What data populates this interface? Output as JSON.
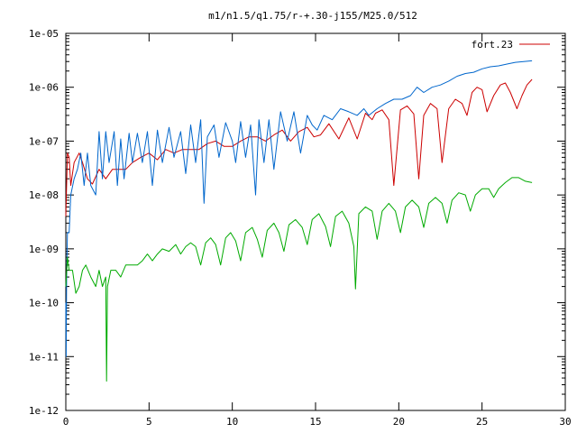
{
  "chart_data": {
    "type": "line",
    "title": "m1/n1.5/q1.75/r-+.30-j155/M25.0/512",
    "xlabel": "",
    "ylabel": "",
    "xlim": [
      0,
      30
    ],
    "ylim": [
      1e-12,
      1e-05
    ],
    "yscale": "log",
    "grid": false,
    "legend_position": "top-right",
    "x_ticks": [
      0,
      5,
      10,
      15,
      20,
      25,
      30
    ],
    "x_tick_labels": [
      "0",
      "5",
      "10",
      "15",
      "20",
      "25",
      "30"
    ],
    "y_ticks": [
      1e-12,
      1e-11,
      1e-10,
      1e-09,
      1e-08,
      1e-07,
      1e-06,
      1e-05
    ],
    "y_tick_labels": [
      "1e-12",
      "1e-11",
      "1e-10",
      "1e-09",
      "1e-08",
      "1e-07",
      "1e-06",
      "1e-05"
    ],
    "series": [
      {
        "name": "fort.23",
        "color": "#cc0000",
        "points": [
          [
            0.0,
            4e-09
          ],
          [
            0.1,
            6e-08
          ],
          [
            0.2,
            5e-08
          ],
          [
            0.3,
            1.5e-08
          ],
          [
            0.5,
            4e-08
          ],
          [
            0.8,
            6e-08
          ],
          [
            1.0,
            4e-08
          ],
          [
            1.3,
            2e-08
          ],
          [
            1.6,
            1.6e-08
          ],
          [
            2.0,
            3e-08
          ],
          [
            2.4,
            2e-08
          ],
          [
            2.8,
            3e-08
          ],
          [
            3.2,
            3e-08
          ],
          [
            3.6,
            3e-08
          ],
          [
            4.0,
            4e-08
          ],
          [
            4.5,
            5e-08
          ],
          [
            5.0,
            6e-08
          ],
          [
            5.5,
            4.5e-08
          ],
          [
            6.0,
            7e-08
          ],
          [
            6.5,
            6e-08
          ],
          [
            7.0,
            7e-08
          ],
          [
            7.5,
            7e-08
          ],
          [
            8.0,
            7e-08
          ],
          [
            8.5,
            9e-08
          ],
          [
            9.0,
            1e-07
          ],
          [
            9.5,
            8e-08
          ],
          [
            10.0,
            8e-08
          ],
          [
            10.5,
            1e-07
          ],
          [
            11.0,
            1.2e-07
          ],
          [
            11.5,
            1.2e-07
          ],
          [
            12.0,
            1e-07
          ],
          [
            12.5,
            1.3e-07
          ],
          [
            13.0,
            1.6e-07
          ],
          [
            13.5,
            1e-07
          ],
          [
            14.0,
            1.5e-07
          ],
          [
            14.5,
            1.8e-07
          ],
          [
            14.9,
            1.2e-07
          ],
          [
            15.3,
            1.3e-07
          ],
          [
            15.8,
            2.1e-07
          ],
          [
            16.4,
            1.1e-07
          ],
          [
            17.0,
            2.7e-07
          ],
          [
            17.5,
            1.1e-07
          ],
          [
            18.0,
            3.3e-07
          ],
          [
            18.4,
            2.5e-07
          ],
          [
            18.6,
            3.3e-07
          ],
          [
            19.0,
            3.8e-07
          ],
          [
            19.4,
            2.5e-07
          ],
          [
            19.7,
            1.5e-08
          ],
          [
            20.1,
            3.8e-07
          ],
          [
            20.5,
            4.5e-07
          ],
          [
            20.9,
            3.2e-07
          ],
          [
            21.2,
            2e-08
          ],
          [
            21.5,
            3e-07
          ],
          [
            21.9,
            5e-07
          ],
          [
            22.3,
            4e-07
          ],
          [
            22.6,
            4e-08
          ],
          [
            23.0,
            4e-07
          ],
          [
            23.4,
            6e-07
          ],
          [
            23.8,
            5e-07
          ],
          [
            24.1,
            3e-07
          ],
          [
            24.4,
            8e-07
          ],
          [
            24.7,
            1e-06
          ],
          [
            25.0,
            9e-07
          ],
          [
            25.3,
            3.5e-07
          ],
          [
            25.7,
            7e-07
          ],
          [
            26.1,
            1.1e-06
          ],
          [
            26.4,
            1.2e-06
          ],
          [
            26.7,
            8e-07
          ],
          [
            27.1,
            4e-07
          ],
          [
            27.4,
            7e-07
          ],
          [
            27.7,
            1.1e-06
          ],
          [
            28.0,
            1.4e-06
          ]
        ]
      },
      {
        "name": "",
        "color": "#0066cc",
        "points": [
          [
            0.0,
            1e-10
          ],
          [
            0.02,
            1e-11
          ],
          [
            0.05,
            3e-10
          ],
          [
            0.1,
            2e-09
          ],
          [
            0.2,
            2e-09
          ],
          [
            0.3,
            1e-08
          ],
          [
            0.5,
            2e-08
          ],
          [
            0.7,
            3e-08
          ],
          [
            0.9,
            6e-08
          ],
          [
            1.1,
            1.5e-08
          ],
          [
            1.3,
            6e-08
          ],
          [
            1.5,
            1.5e-08
          ],
          [
            1.8,
            1e-08
          ],
          [
            2.0,
            1.5e-07
          ],
          [
            2.2,
            2e-08
          ],
          [
            2.4,
            1.5e-07
          ],
          [
            2.6,
            4e-08
          ],
          [
            2.9,
            1.5e-07
          ],
          [
            3.1,
            1.5e-08
          ],
          [
            3.3,
            1.1e-07
          ],
          [
            3.5,
            2e-08
          ],
          [
            3.8,
            1.4e-07
          ],
          [
            4.0,
            4e-08
          ],
          [
            4.3,
            1.4e-07
          ],
          [
            4.6,
            4e-08
          ],
          [
            4.9,
            1.5e-07
          ],
          [
            5.2,
            1.5e-08
          ],
          [
            5.5,
            1.6e-07
          ],
          [
            5.8,
            4e-08
          ],
          [
            6.2,
            1.8e-07
          ],
          [
            6.5,
            5e-08
          ],
          [
            6.9,
            1.5e-07
          ],
          [
            7.2,
            2.5e-08
          ],
          [
            7.5,
            2e-07
          ],
          [
            7.8,
            4e-08
          ],
          [
            8.1,
            2.5e-07
          ],
          [
            8.3,
            7e-09
          ],
          [
            8.5,
            1.2e-07
          ],
          [
            8.9,
            2e-07
          ],
          [
            9.2,
            5e-08
          ],
          [
            9.6,
            2.2e-07
          ],
          [
            10.0,
            1e-07
          ],
          [
            10.2,
            4e-08
          ],
          [
            10.5,
            2.3e-07
          ],
          [
            10.8,
            5e-08
          ],
          [
            11.1,
            2e-07
          ],
          [
            11.4,
            1e-08
          ],
          [
            11.6,
            2.5e-07
          ],
          [
            11.9,
            4e-08
          ],
          [
            12.2,
            2.5e-07
          ],
          [
            12.5,
            3e-08
          ],
          [
            12.9,
            3.5e-07
          ],
          [
            13.3,
            1e-07
          ],
          [
            13.7,
            3.5e-07
          ],
          [
            14.1,
            6e-08
          ],
          [
            14.5,
            3e-07
          ],
          [
            14.8,
            2e-07
          ],
          [
            15.1,
            1.6e-07
          ],
          [
            15.5,
            3e-07
          ],
          [
            16.0,
            2.5e-07
          ],
          [
            16.5,
            4e-07
          ],
          [
            17.0,
            3.5e-07
          ],
          [
            17.5,
            3e-07
          ],
          [
            17.9,
            4e-07
          ],
          [
            18.2,
            3e-07
          ],
          [
            18.7,
            4e-07
          ],
          [
            19.2,
            5e-07
          ],
          [
            19.7,
            6e-07
          ],
          [
            20.2,
            6e-07
          ],
          [
            20.7,
            7e-07
          ],
          [
            21.1,
            1e-06
          ],
          [
            21.5,
            8e-07
          ],
          [
            22.0,
            1e-06
          ],
          [
            22.5,
            1.1e-06
          ],
          [
            23.0,
            1.3e-06
          ],
          [
            23.5,
            1.6e-06
          ],
          [
            24.0,
            1.8e-06
          ],
          [
            24.5,
            1.9e-06
          ],
          [
            25.0,
            2.2e-06
          ],
          [
            25.5,
            2.4e-06
          ],
          [
            26.0,
            2.5e-06
          ],
          [
            26.5,
            2.7e-06
          ],
          [
            27.0,
            2.9e-06
          ],
          [
            27.5,
            3e-06
          ],
          [
            28.0,
            3.1e-06
          ]
        ]
      },
      {
        "name": "",
        "color": "#00aa00",
        "points": [
          [
            0.0,
            2e-10
          ],
          [
            0.1,
            7e-10
          ],
          [
            0.2,
            4e-10
          ],
          [
            0.4,
            4e-10
          ],
          [
            0.6,
            1.5e-10
          ],
          [
            0.8,
            2e-10
          ],
          [
            1.0,
            4e-10
          ],
          [
            1.2,
            5e-10
          ],
          [
            1.5,
            3e-10
          ],
          [
            1.8,
            2e-10
          ],
          [
            2.0,
            4e-10
          ],
          [
            2.2,
            2e-10
          ],
          [
            2.4,
            3e-10
          ],
          [
            2.45,
            3.5e-12
          ],
          [
            2.5,
            2e-10
          ],
          [
            2.7,
            4e-10
          ],
          [
            3.0,
            4e-10
          ],
          [
            3.3,
            3e-10
          ],
          [
            3.6,
            5e-10
          ],
          [
            4.0,
            5e-10
          ],
          [
            4.3,
            5e-10
          ],
          [
            4.6,
            6e-10
          ],
          [
            4.9,
            8e-10
          ],
          [
            5.2,
            6e-10
          ],
          [
            5.5,
            8e-10
          ],
          [
            5.8,
            1e-09
          ],
          [
            6.2,
            9e-10
          ],
          [
            6.6,
            1.2e-09
          ],
          [
            6.9,
            8e-10
          ],
          [
            7.2,
            1.1e-09
          ],
          [
            7.5,
            1.3e-09
          ],
          [
            7.8,
            1.1e-09
          ],
          [
            8.1,
            5e-10
          ],
          [
            8.4,
            1.3e-09
          ],
          [
            8.7,
            1.6e-09
          ],
          [
            9.0,
            1.2e-09
          ],
          [
            9.3,
            5e-10
          ],
          [
            9.6,
            1.6e-09
          ],
          [
            9.9,
            2e-09
          ],
          [
            10.2,
            1.4e-09
          ],
          [
            10.5,
            6e-10
          ],
          [
            10.8,
            2e-09
          ],
          [
            11.2,
            2.5e-09
          ],
          [
            11.5,
            1.5e-09
          ],
          [
            11.8,
            7e-10
          ],
          [
            12.1,
            2.2e-09
          ],
          [
            12.5,
            3e-09
          ],
          [
            12.8,
            2e-09
          ],
          [
            13.1,
            9e-10
          ],
          [
            13.4,
            2.8e-09
          ],
          [
            13.8,
            3.5e-09
          ],
          [
            14.2,
            2.5e-09
          ],
          [
            14.5,
            1.2e-09
          ],
          [
            14.8,
            3.5e-09
          ],
          [
            15.2,
            4.5e-09
          ],
          [
            15.6,
            2.6e-09
          ],
          [
            15.9,
            1.1e-09
          ],
          [
            16.2,
            4e-09
          ],
          [
            16.6,
            5e-09
          ],
          [
            17.0,
            3e-09
          ],
          [
            17.3,
            1.1e-09
          ],
          [
            17.4,
            1.8e-10
          ],
          [
            17.6,
            4.5e-09
          ],
          [
            18.0,
            6e-09
          ],
          [
            18.4,
            5e-09
          ],
          [
            18.7,
            1.5e-09
          ],
          [
            19.0,
            5e-09
          ],
          [
            19.4,
            7e-09
          ],
          [
            19.8,
            5e-09
          ],
          [
            20.1,
            2e-09
          ],
          [
            20.4,
            6e-09
          ],
          [
            20.8,
            8e-09
          ],
          [
            21.2,
            6e-09
          ],
          [
            21.5,
            2.5e-09
          ],
          [
            21.8,
            7e-09
          ],
          [
            22.2,
            9e-09
          ],
          [
            22.6,
            7e-09
          ],
          [
            22.9,
            3e-09
          ],
          [
            23.2,
            8e-09
          ],
          [
            23.6,
            1.1e-08
          ],
          [
            24.0,
            1e-08
          ],
          [
            24.3,
            5e-09
          ],
          [
            24.6,
            1e-08
          ],
          [
            25.0,
            1.3e-08
          ],
          [
            25.4,
            1.3e-08
          ],
          [
            25.7,
            9e-09
          ],
          [
            26.0,
            1.3e-08
          ],
          [
            26.4,
            1.7e-08
          ],
          [
            26.8,
            2.1e-08
          ],
          [
            27.2,
            2.1e-08
          ],
          [
            27.6,
            1.8e-08
          ],
          [
            28.0,
            1.7e-08
          ]
        ]
      }
    ]
  }
}
